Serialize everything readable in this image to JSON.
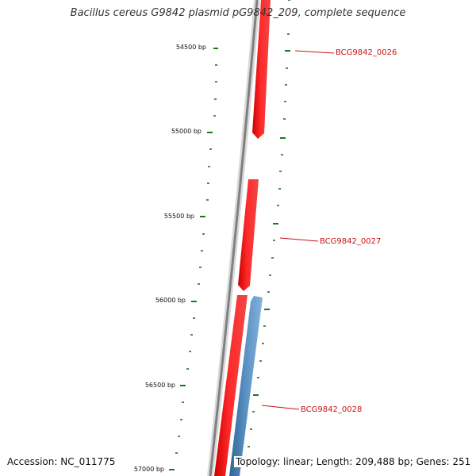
{
  "title": "Bacillus cereus G9842 plasmid pG9842_209, complete sequence",
  "ruler_labels": [
    "54500 bp",
    "55000 bp",
    "55500 bp",
    "56000 bp",
    "56500 bp",
    "57000 bp"
  ],
  "genes": [
    {
      "name": "BCG9842_0026",
      "strand": "forward",
      "color": "#ee1111"
    },
    {
      "name": "BCG9842_0027",
      "strand": "forward",
      "color": "#ee1111"
    },
    {
      "name": "BCG9842_0028",
      "strand": "reverse",
      "color": "#4a7fb0"
    }
  ],
  "footer": {
    "accession_label": "Accession:",
    "accession": "NC_011775",
    "topology_label": "Topology:",
    "topology": "linear",
    "length_label": "Length:",
    "length": "209,488 bp",
    "genes_label": "Genes:",
    "genes_count": "251"
  },
  "colors": {
    "backbone": "#808080",
    "tick": "#1a7a1a",
    "label": "#cc1111",
    "forward": "#ee1111",
    "reverse": "#4a7fb0"
  }
}
